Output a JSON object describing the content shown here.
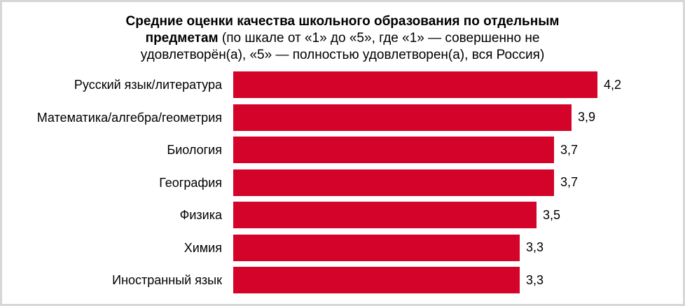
{
  "frame": {
    "background": "#ffffff",
    "border_color": "#d7d7d7"
  },
  "title": {
    "bold": "Средние оценки качества школьного образования по отдельным предметам",
    "regular": " (по шкале от «1» до «5», где «1» — совершенно не удовлетворён(а), «5» — полностью удовлетворен(а), вся Россия)"
  },
  "chart_data": {
    "type": "bar",
    "orientation": "horizontal",
    "title": "Средние оценки качества школьного образования по отдельным предметам (по шкале от «1» до «5», где «1» — совершенно не удовлетворён(а), «5» — полностью удовлетворен(а), вся Россия)",
    "categories": [
      "Русский язык/литература",
      "Математика/алгебра/геометрия",
      "Биология",
      "География",
      "Физика",
      "Химия",
      "Иностранный язык"
    ],
    "values": [
      4.2,
      3.9,
      3.7,
      3.7,
      3.5,
      3.3,
      3.3
    ],
    "value_labels": [
      "4,2",
      "3,9",
      "3,7",
      "3,7",
      "3,5",
      "3,3",
      "3,3"
    ],
    "bar_color": "#d30329",
    "xlim": [
      0,
      4.7
    ],
    "grid": false,
    "axis_visible": false,
    "legend": null,
    "value_label_position": "end-of-bar",
    "decimal_separator": ","
  }
}
